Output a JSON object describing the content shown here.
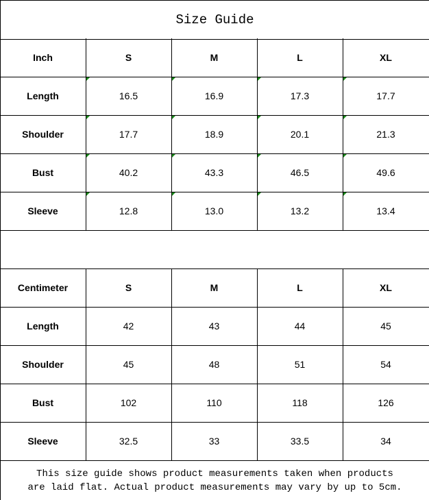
{
  "title": "Size Guide",
  "tables": [
    {
      "unit": "Inch",
      "sizes": [
        "S",
        "M",
        "L",
        "XL"
      ],
      "rows": [
        {
          "label": "Length",
          "values": [
            "16.5",
            "16.9",
            "17.3",
            "17.7"
          ]
        },
        {
          "label": "Shoulder",
          "values": [
            "17.7",
            "18.9",
            "20.1",
            "21.3"
          ]
        },
        {
          "label": "Bust",
          "values": [
            "40.2",
            "43.3",
            "46.5",
            "49.6"
          ]
        },
        {
          "label": "Sleeve",
          "values": [
            "12.8",
            "13.0",
            "13.2",
            "13.4"
          ]
        }
      ],
      "flagged_cells": true
    },
    {
      "unit": "Centimeter",
      "sizes": [
        "S",
        "M",
        "L",
        "XL"
      ],
      "rows": [
        {
          "label": "Length",
          "values": [
            "42",
            "43",
            "44",
            "45"
          ]
        },
        {
          "label": "Shoulder",
          "values": [
            "45",
            "48",
            "51",
            "54"
          ]
        },
        {
          "label": "Bust",
          "values": [
            "102",
            "110",
            "118",
            "126"
          ]
        },
        {
          "label": "Sleeve",
          "values": [
            "32.5",
            "33",
            "33.5",
            "34"
          ]
        }
      ],
      "flagged_cells": false
    }
  ],
  "note": {
    "line1": "This size guide shows product measurements taken when products",
    "line2": "are laid flat. Actual product measurements may vary by up to 5cm."
  },
  "colors": {
    "border": "#000000",
    "cell_flag": "#1a8a1a"
  }
}
